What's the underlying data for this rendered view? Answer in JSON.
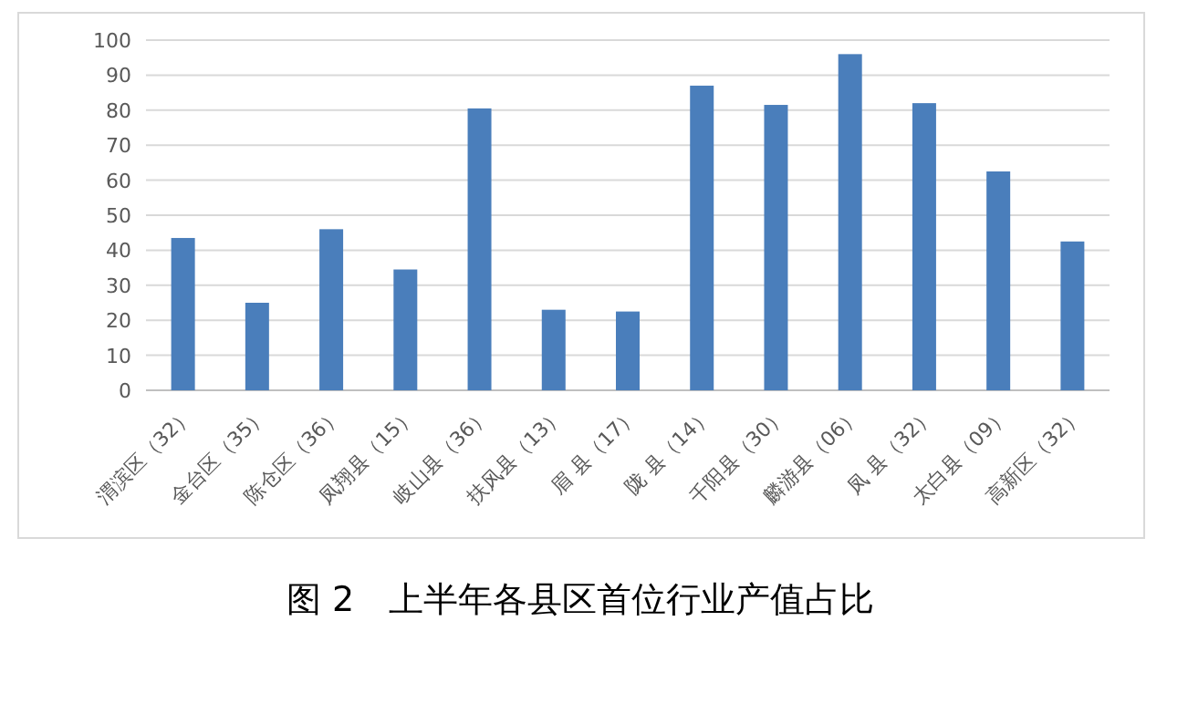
{
  "chart_data": {
    "type": "bar",
    "title": "图 2　上半年各县区首位行业产值占比",
    "categories": [
      "渭滨区（32）",
      "金台区（35）",
      "陈仓区（36）",
      "凤翔县（15）",
      "岐山县（36）",
      "扶风县（13）",
      "眉 县（17）",
      "陇 县（14）",
      "千阳县（30）",
      "麟游县（06）",
      "凤 县（32）",
      "太白县（09）",
      "高新区（32）"
    ],
    "values": [
      43.5,
      25,
      46,
      34.5,
      80.5,
      23,
      22.5,
      87,
      81.5,
      96,
      82,
      62.5,
      42.5
    ],
    "color": "#4a7ebb",
    "ylim": [
      0,
      100
    ],
    "yticks": [
      0,
      10,
      20,
      30,
      40,
      50,
      60,
      70,
      80,
      90,
      100
    ],
    "grid": "y"
  }
}
